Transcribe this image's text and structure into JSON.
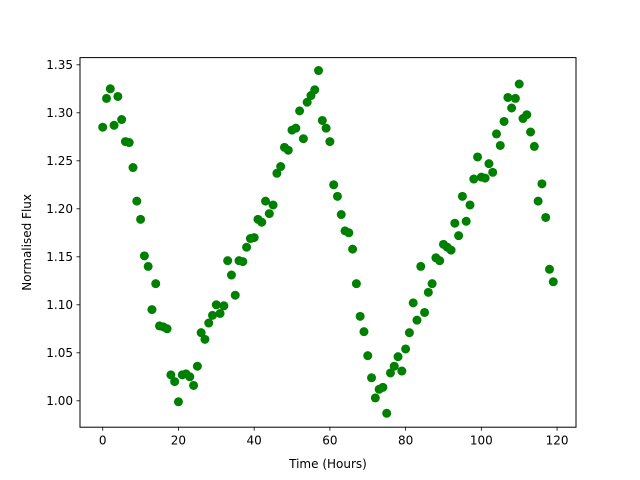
{
  "chart_data": {
    "type": "scatter",
    "xlabel": "Time (Hours)",
    "ylabel": "Normalised Flux",
    "xlim": [
      -6,
      125
    ],
    "ylim": [
      0.9725,
      1.3575
    ],
    "xticks": [
      0,
      20,
      40,
      60,
      80,
      100,
      120
    ],
    "xtick_labels": [
      "0",
      "20",
      "40",
      "60",
      "80",
      "100",
      "120"
    ],
    "yticks": [
      1.0,
      1.05,
      1.1,
      1.15,
      1.2,
      1.25,
      1.3,
      1.35
    ],
    "ytick_labels": [
      "1.00",
      "1.05",
      "1.10",
      "1.15",
      "1.20",
      "1.25",
      "1.30",
      "1.35"
    ],
    "grid": false,
    "marker_color": "#008000",
    "series": [
      {
        "x": [
          0,
          1,
          2,
          3,
          4,
          5,
          6,
          7,
          8,
          9,
          10,
          11,
          12,
          13,
          14,
          15,
          16,
          17,
          18,
          19,
          20,
          21,
          22,
          23,
          24,
          25,
          26,
          27,
          28,
          29,
          30,
          31,
          32,
          33,
          34,
          35,
          36,
          37,
          38,
          39,
          40,
          41,
          42,
          43,
          44,
          45,
          46,
          47,
          48,
          49,
          50,
          51,
          52,
          53,
          54,
          55,
          56,
          57,
          58,
          59,
          60,
          61,
          62,
          63,
          64,
          65,
          66,
          67,
          68,
          69,
          70,
          71,
          72,
          73,
          74,
          75,
          76,
          77,
          78,
          79,
          80,
          81,
          82,
          83,
          84,
          85,
          86,
          87,
          88,
          89,
          90,
          91,
          92,
          93,
          94,
          95,
          96,
          97,
          98,
          99,
          100,
          101,
          102,
          103,
          104,
          105,
          106,
          107,
          108,
          109,
          110,
          111,
          112,
          113,
          114,
          115,
          116,
          117,
          118,
          119
        ],
        "y": [
          1.285,
          1.315,
          1.325,
          1.287,
          1.317,
          1.293,
          1.27,
          1.269,
          1.243,
          1.208,
          1.189,
          1.151,
          1.14,
          1.095,
          1.122,
          1.078,
          1.077,
          1.075,
          1.027,
          1.02,
          0.999,
          1.027,
          1.028,
          1.025,
          1.016,
          1.036,
          1.071,
          1.064,
          1.081,
          1.089,
          1.1,
          1.091,
          1.099,
          1.146,
          1.131,
          1.11,
          1.146,
          1.145,
          1.16,
          1.169,
          1.17,
          1.189,
          1.186,
          1.208,
          1.195,
          1.204,
          1.237,
          1.244,
          1.264,
          1.261,
          1.282,
          1.284,
          1.302,
          1.273,
          1.311,
          1.318,
          1.324,
          1.344,
          1.292,
          1.284,
          1.27,
          1.225,
          1.213,
          1.194,
          1.177,
          1.175,
          1.158,
          1.122,
          1.088,
          1.072,
          1.047,
          1.024,
          1.003,
          1.012,
          1.014,
          0.987,
          1.029,
          1.036,
          1.046,
          1.031,
          1.054,
          1.071,
          1.102,
          1.084,
          1.14,
          1.092,
          1.113,
          1.122,
          1.149,
          1.146,
          1.163,
          1.16,
          1.157,
          1.185,
          1.172,
          1.213,
          1.187,
          1.204,
          1.231,
          1.254,
          1.233,
          1.232,
          1.247,
          1.238,
          1.278,
          1.266,
          1.291,
          1.316,
          1.305,
          1.315,
          1.33,
          1.294,
          1.298,
          1.28,
          1.265,
          1.208,
          1.226,
          1.191,
          1.137,
          1.124
        ]
      }
    ]
  }
}
